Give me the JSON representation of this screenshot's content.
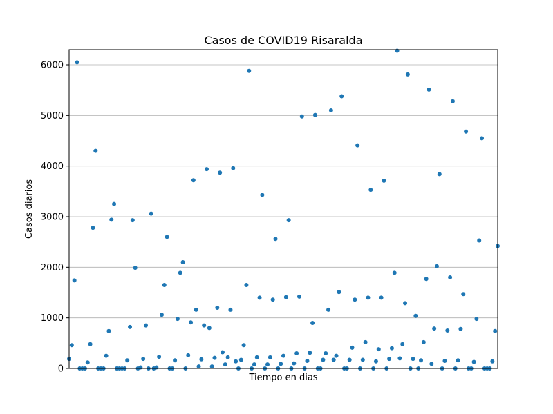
{
  "chart_data": {
    "type": "scatter",
    "title": "Casos de COVID19 Risaralda",
    "xlabel": "Tiempo en dias",
    "ylabel": "Casos diarios",
    "ylim": [
      0,
      6300
    ],
    "yticks": [
      0,
      1000,
      2000,
      3000,
      4000,
      5000,
      6000
    ],
    "xlim": [
      0,
      162
    ],
    "x_ticks_shown": false,
    "grid": "horizontal",
    "marker_color": "#1f77b4",
    "series": [
      {
        "x": [
          0,
          1,
          2,
          3,
          4,
          5,
          6,
          7,
          8,
          9,
          10,
          11,
          12,
          13,
          14,
          15,
          16,
          17,
          18,
          19,
          20,
          21,
          22,
          23,
          24,
          25,
          26,
          27,
          28,
          29,
          30,
          31,
          32,
          33,
          34,
          35,
          36,
          37,
          38,
          39,
          40,
          41,
          42,
          43,
          44,
          45,
          46,
          47,
          48,
          49,
          50,
          51,
          52,
          53,
          54,
          55,
          56,
          57,
          58,
          59,
          60,
          61,
          62,
          63,
          64,
          65,
          66,
          67,
          68,
          69,
          70,
          71,
          72,
          73,
          74,
          75,
          76,
          77,
          78,
          79,
          80,
          81,
          82,
          83,
          84,
          85,
          86,
          87,
          88,
          89,
          90,
          91,
          92,
          93,
          94,
          95,
          96,
          97,
          98,
          99,
          100,
          101,
          102,
          103,
          104,
          105,
          106,
          107,
          108,
          109,
          110,
          111,
          112,
          113,
          114,
          115,
          116,
          117,
          118,
          119,
          120,
          121,
          122,
          123,
          124,
          125,
          126,
          127,
          128,
          129,
          130,
          131,
          132,
          133,
          134,
          135,
          136,
          137,
          138,
          139,
          140,
          141,
          142,
          143,
          144,
          145,
          146,
          147,
          148,
          149,
          150,
          151,
          152,
          153,
          154,
          155,
          156,
          157,
          158,
          159,
          160,
          161,
          162
        ],
        "y": [
          190,
          460,
          1740,
          6050,
          0,
          0,
          0,
          120,
          480,
          2780,
          4300,
          0,
          0,
          0,
          250,
          740,
          2940,
          3250,
          0,
          0,
          0,
          0,
          160,
          820,
          2930,
          1990,
          0,
          20,
          190,
          850,
          0,
          3060,
          0,
          20,
          230,
          1060,
          1650,
          2600,
          0,
          0,
          160,
          980,
          1890,
          2100,
          0,
          260,
          910,
          3720,
          1160,
          40,
          180,
          850,
          3940,
          800,
          40,
          210,
          1200,
          3870,
          320,
          80,
          220,
          1160,
          3960,
          140,
          0,
          170,
          460,
          1650,
          5880,
          0,
          80,
          220,
          1400,
          3430,
          0,
          80,
          220,
          1360,
          2560,
          0,
          90,
          250,
          1410,
          2930,
          0,
          100,
          300,
          1420,
          4980,
          0,
          150,
          310,
          900,
          5010,
          0,
          0,
          170,
          300,
          1160,
          5100,
          170,
          250,
          1510,
          5380,
          0,
          0,
          170,
          410,
          1360,
          4410,
          0,
          170,
          520,
          1400,
          3530,
          0,
          140,
          380,
          1400,
          3710,
          0,
          190,
          400,
          1890,
          6280,
          200,
          480,
          1290,
          5810,
          0,
          190,
          1040,
          0,
          160,
          520,
          1770,
          5510,
          90,
          790,
          2020,
          3840,
          0,
          150,
          750,
          1800,
          5280,
          0,
          160,
          780,
          1470,
          4680,
          0,
          0,
          130,
          980,
          2530,
          4550,
          0,
          0,
          0,
          140,
          740,
          2420
        ]
      }
    ]
  }
}
